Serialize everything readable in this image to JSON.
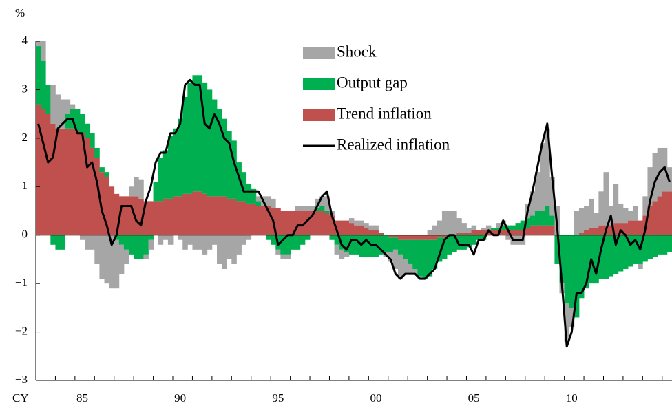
{
  "chart_data": {
    "type": "bar",
    "y_label": "%",
    "x_label": "CY",
    "legend": "upper center",
    "categories": [
      null,
      null,
      null,
      null,
      null,
      null,
      null,
      null,
      null,
      "85",
      null,
      null,
      null,
      null,
      null,
      null,
      null,
      null,
      null,
      null,
      null,
      null,
      null,
      null,
      null,
      null,
      null,
      null,
      null,
      "90",
      null,
      null,
      null,
      null,
      null,
      null,
      null,
      null,
      null,
      null,
      null,
      null,
      null,
      null,
      null,
      null,
      null,
      null,
      null,
      "95",
      null,
      null,
      null,
      null,
      null,
      null,
      null,
      null,
      null,
      null,
      null,
      null,
      null,
      null,
      null,
      null,
      null,
      null,
      null,
      "00",
      null,
      null,
      null,
      null,
      null,
      null,
      null,
      null,
      null,
      null,
      null,
      null,
      null,
      null,
      null,
      null,
      null,
      null,
      null,
      "05",
      null,
      null,
      null,
      null,
      null,
      null,
      null,
      null,
      null,
      null,
      null,
      null,
      null,
      null,
      null,
      null,
      null,
      null,
      null,
      "10",
      null,
      null,
      null,
      null,
      null,
      null,
      null,
      null,
      null,
      null,
      null,
      null,
      null,
      null,
      null,
      null,
      null,
      null,
      null,
      null
    ],
    "series": [
      {
        "name": "Shock",
        "type": "bar",
        "color": "#a6a6a6",
        "values": [
          0.1,
          0.4,
          0.0,
          0.8,
          0.7,
          0.6,
          0.3,
          0.1,
          0,
          -0.1,
          -0.3,
          -0.3,
          -0.6,
          -0.9,
          -1.0,
          -1.1,
          -1.0,
          -0.6,
          -0.3,
          0.2,
          0.4,
          0.4,
          -0.1,
          -0.2,
          0,
          -0.2,
          -0.1,
          -0.2,
          0,
          -0.1,
          -0.3,
          -0.2,
          -0.3,
          -0.3,
          -0.4,
          -0.3,
          -0.2,
          -0.6,
          -0.7,
          -0.5,
          -0.6,
          -0.4,
          -0.2,
          -0.1,
          0,
          0.1,
          0.2,
          0.2,
          0.2,
          -0.1,
          -0.1,
          -0.1,
          0.0,
          0.1,
          0.1,
          0.1,
          0.1,
          0.2,
          0.2,
          0.3,
          0.1,
          -0.2,
          -0.2,
          -0.1,
          0.1,
          0.1,
          0.1,
          0.1,
          0.1,
          0.1,
          0.0,
          -0.1,
          -0.2,
          -0.4,
          -0.5,
          -0.3,
          -0.2,
          -0.1,
          -0.05,
          0.0,
          0.1,
          0.2,
          0.3,
          0.5,
          0.5,
          0.5,
          0.3,
          0.2,
          0.1,
          0.1,
          0.0,
          0.05,
          0.1,
          0.0,
          0.1,
          0.1,
          -0.1,
          -0.2,
          -0.2,
          -0.2,
          0.3,
          0.5,
          0.8,
          1.4,
          1.6,
          0.8,
          0.6,
          -0.2,
          -0.8,
          -0.4,
          0.5,
          0.5,
          0.5,
          0.6,
          0.3,
          0.7,
          1.1,
          0.4,
          0.8,
          0.4,
          0.3,
          0.2,
          0.3,
          -0.1,
          0.4,
          0.8,
          1.0,
          1.0,
          0.9,
          0.5
        ]
      },
      {
        "name": "Output gap",
        "type": "bar",
        "color": "#00b050",
        "values": [
          1.2,
          1.0,
          0.6,
          -0.2,
          -0.3,
          -0.3,
          0.3,
          0.4,
          0.45,
          0.4,
          0.3,
          0.3,
          0.2,
          0.1,
          0.1,
          0.0,
          -0.1,
          -0.2,
          -0.3,
          -0.4,
          -0.5,
          -0.5,
          -0.4,
          -0.1,
          0.4,
          0.9,
          1.0,
          1.3,
          1.4,
          1.6,
          2.0,
          2.3,
          2.4,
          2.4,
          2.3,
          2.2,
          2.0,
          1.8,
          1.6,
          1.4,
          1.2,
          0.8,
          0.6,
          0.4,
          0.3,
          0.1,
          0.0,
          -0.1,
          -0.2,
          -0.3,
          -0.4,
          -0.4,
          -0.3,
          -0.3,
          -0.2,
          -0.1,
          0.0,
          0.05,
          0.1,
          0.05,
          -0.1,
          -0.2,
          -0.3,
          -0.35,
          -0.4,
          -0.4,
          -0.45,
          -0.45,
          -0.45,
          -0.45,
          -0.4,
          -0.35,
          -0.3,
          -0.25,
          -0.3,
          -0.4,
          -0.5,
          -0.6,
          -0.75,
          -0.8,
          -0.75,
          -0.6,
          -0.5,
          -0.45,
          -0.4,
          -0.35,
          -0.3,
          -0.3,
          -0.25,
          -0.2,
          -0.1,
          -0.1,
          0.0,
          0.05,
          0.05,
          0.1,
          0.1,
          0.1,
          0.15,
          0.2,
          0.2,
          0.2,
          0.3,
          0.3,
          0.4,
          0.2,
          -0.6,
          -1.0,
          -1.4,
          -1.5,
          -1.7,
          -1.3,
          -1.1,
          -1.0,
          -1.0,
          -0.9,
          -0.9,
          -0.85,
          -0.8,
          -0.75,
          -0.7,
          -0.65,
          -0.6,
          -0.6,
          -0.55,
          -0.5,
          -0.45,
          -0.4,
          -0.4,
          -0.35
        ]
      },
      {
        "name": "Trend inflation",
        "type": "bar",
        "color": "#c0504d",
        "values": [
          2.7,
          2.6,
          2.5,
          2.3,
          2.2,
          2.2,
          2.2,
          2.2,
          2.15,
          2.1,
          2.0,
          1.8,
          1.6,
          1.3,
          1.2,
          1.0,
          0.85,
          0.8,
          0.8,
          0.8,
          0.8,
          0.75,
          0.7,
          0.7,
          0.7,
          0.7,
          0.75,
          0.75,
          0.8,
          0.8,
          0.85,
          0.85,
          0.9,
          0.9,
          0.85,
          0.8,
          0.8,
          0.8,
          0.8,
          0.75,
          0.75,
          0.7,
          0.7,
          0.65,
          0.65,
          0.6,
          0.6,
          0.6,
          0.55,
          0.55,
          0.5,
          0.5,
          0.5,
          0.5,
          0.5,
          0.5,
          0.5,
          0.5,
          0.5,
          0.45,
          0.4,
          0.3,
          0.3,
          0.3,
          0.25,
          0.2,
          0.2,
          0.15,
          0.1,
          0.1,
          0.05,
          0.0,
          -0.05,
          -0.05,
          -0.1,
          -0.1,
          -0.1,
          -0.1,
          -0.1,
          -0.1,
          -0.1,
          -0.1,
          -0.05,
          -0.05,
          0.0,
          0.0,
          0.05,
          0.05,
          0.05,
          0.1,
          0.1,
          0.1,
          0.1,
          0.1,
          0.1,
          0.1,
          0.1,
          0.1,
          0.1,
          0.1,
          0.15,
          0.2,
          0.2,
          0.2,
          0.2,
          0.2,
          0.0,
          0.0,
          0.0,
          0.0,
          0.0,
          0.05,
          0.1,
          0.15,
          0.15,
          0.2,
          0.2,
          0.2,
          0.25,
          0.25,
          0.25,
          0.3,
          0.3,
          0.3,
          0.4,
          0.6,
          0.7,
          0.8,
          0.9,
          0.9
        ]
      },
      {
        "name": "Realized inflation",
        "type": "line",
        "color": "#000000",
        "values": [
          2.3,
          1.9,
          1.5,
          1.6,
          2.2,
          2.3,
          2.4,
          2.4,
          2.1,
          2.1,
          1.4,
          1.5,
          1.1,
          0.5,
          0.2,
          -0.2,
          0.0,
          0.6,
          0.6,
          0.6,
          0.3,
          0.2,
          0.7,
          1.0,
          1.5,
          1.7,
          1.7,
          2.1,
          2.1,
          2.3,
          3.1,
          3.2,
          3.1,
          3.1,
          2.3,
          2.2,
          2.5,
          2.3,
          2.0,
          1.9,
          1.5,
          1.2,
          0.9,
          0.9,
          0.9,
          0.9,
          0.7,
          0.5,
          0.3,
          -0.2,
          -0.1,
          0.0,
          0.0,
          0.2,
          0.2,
          0.3,
          0.4,
          0.6,
          0.8,
          0.9,
          0.4,
          0.1,
          -0.2,
          -0.3,
          -0.1,
          -0.1,
          -0.2,
          -0.1,
          -0.2,
          -0.2,
          -0.3,
          -0.4,
          -0.5,
          -0.8,
          -0.9,
          -0.8,
          -0.8,
          -0.8,
          -0.9,
          -0.9,
          -0.8,
          -0.7,
          -0.4,
          -0.1,
          0.0,
          0.0,
          -0.2,
          -0.2,
          -0.2,
          -0.4,
          -0.1,
          -0.1,
          0.1,
          0.0,
          0.0,
          0.3,
          0.1,
          -0.1,
          -0.1,
          -0.1,
          0.5,
          0.9,
          1.4,
          1.9,
          2.3,
          1.2,
          0.2,
          -1.0,
          -2.3,
          -2.0,
          -1.2,
          -1.2,
          -1.0,
          -0.5,
          -0.8,
          -0.3,
          0.1,
          0.4,
          -0.2,
          0.1,
          0.0,
          -0.2,
          -0.1,
          -0.3,
          0.1,
          0.7,
          1.1,
          1.3,
          1.4,
          1.1
        ]
      }
    ],
    "ylim": [
      -3,
      4
    ],
    "yticks": [
      {
        "value": -3,
        "label": "−3"
      },
      {
        "value": -2,
        "label": "−2"
      },
      {
        "value": -1,
        "label": "−1"
      },
      0,
      1,
      2,
      3,
      4
    ]
  }
}
